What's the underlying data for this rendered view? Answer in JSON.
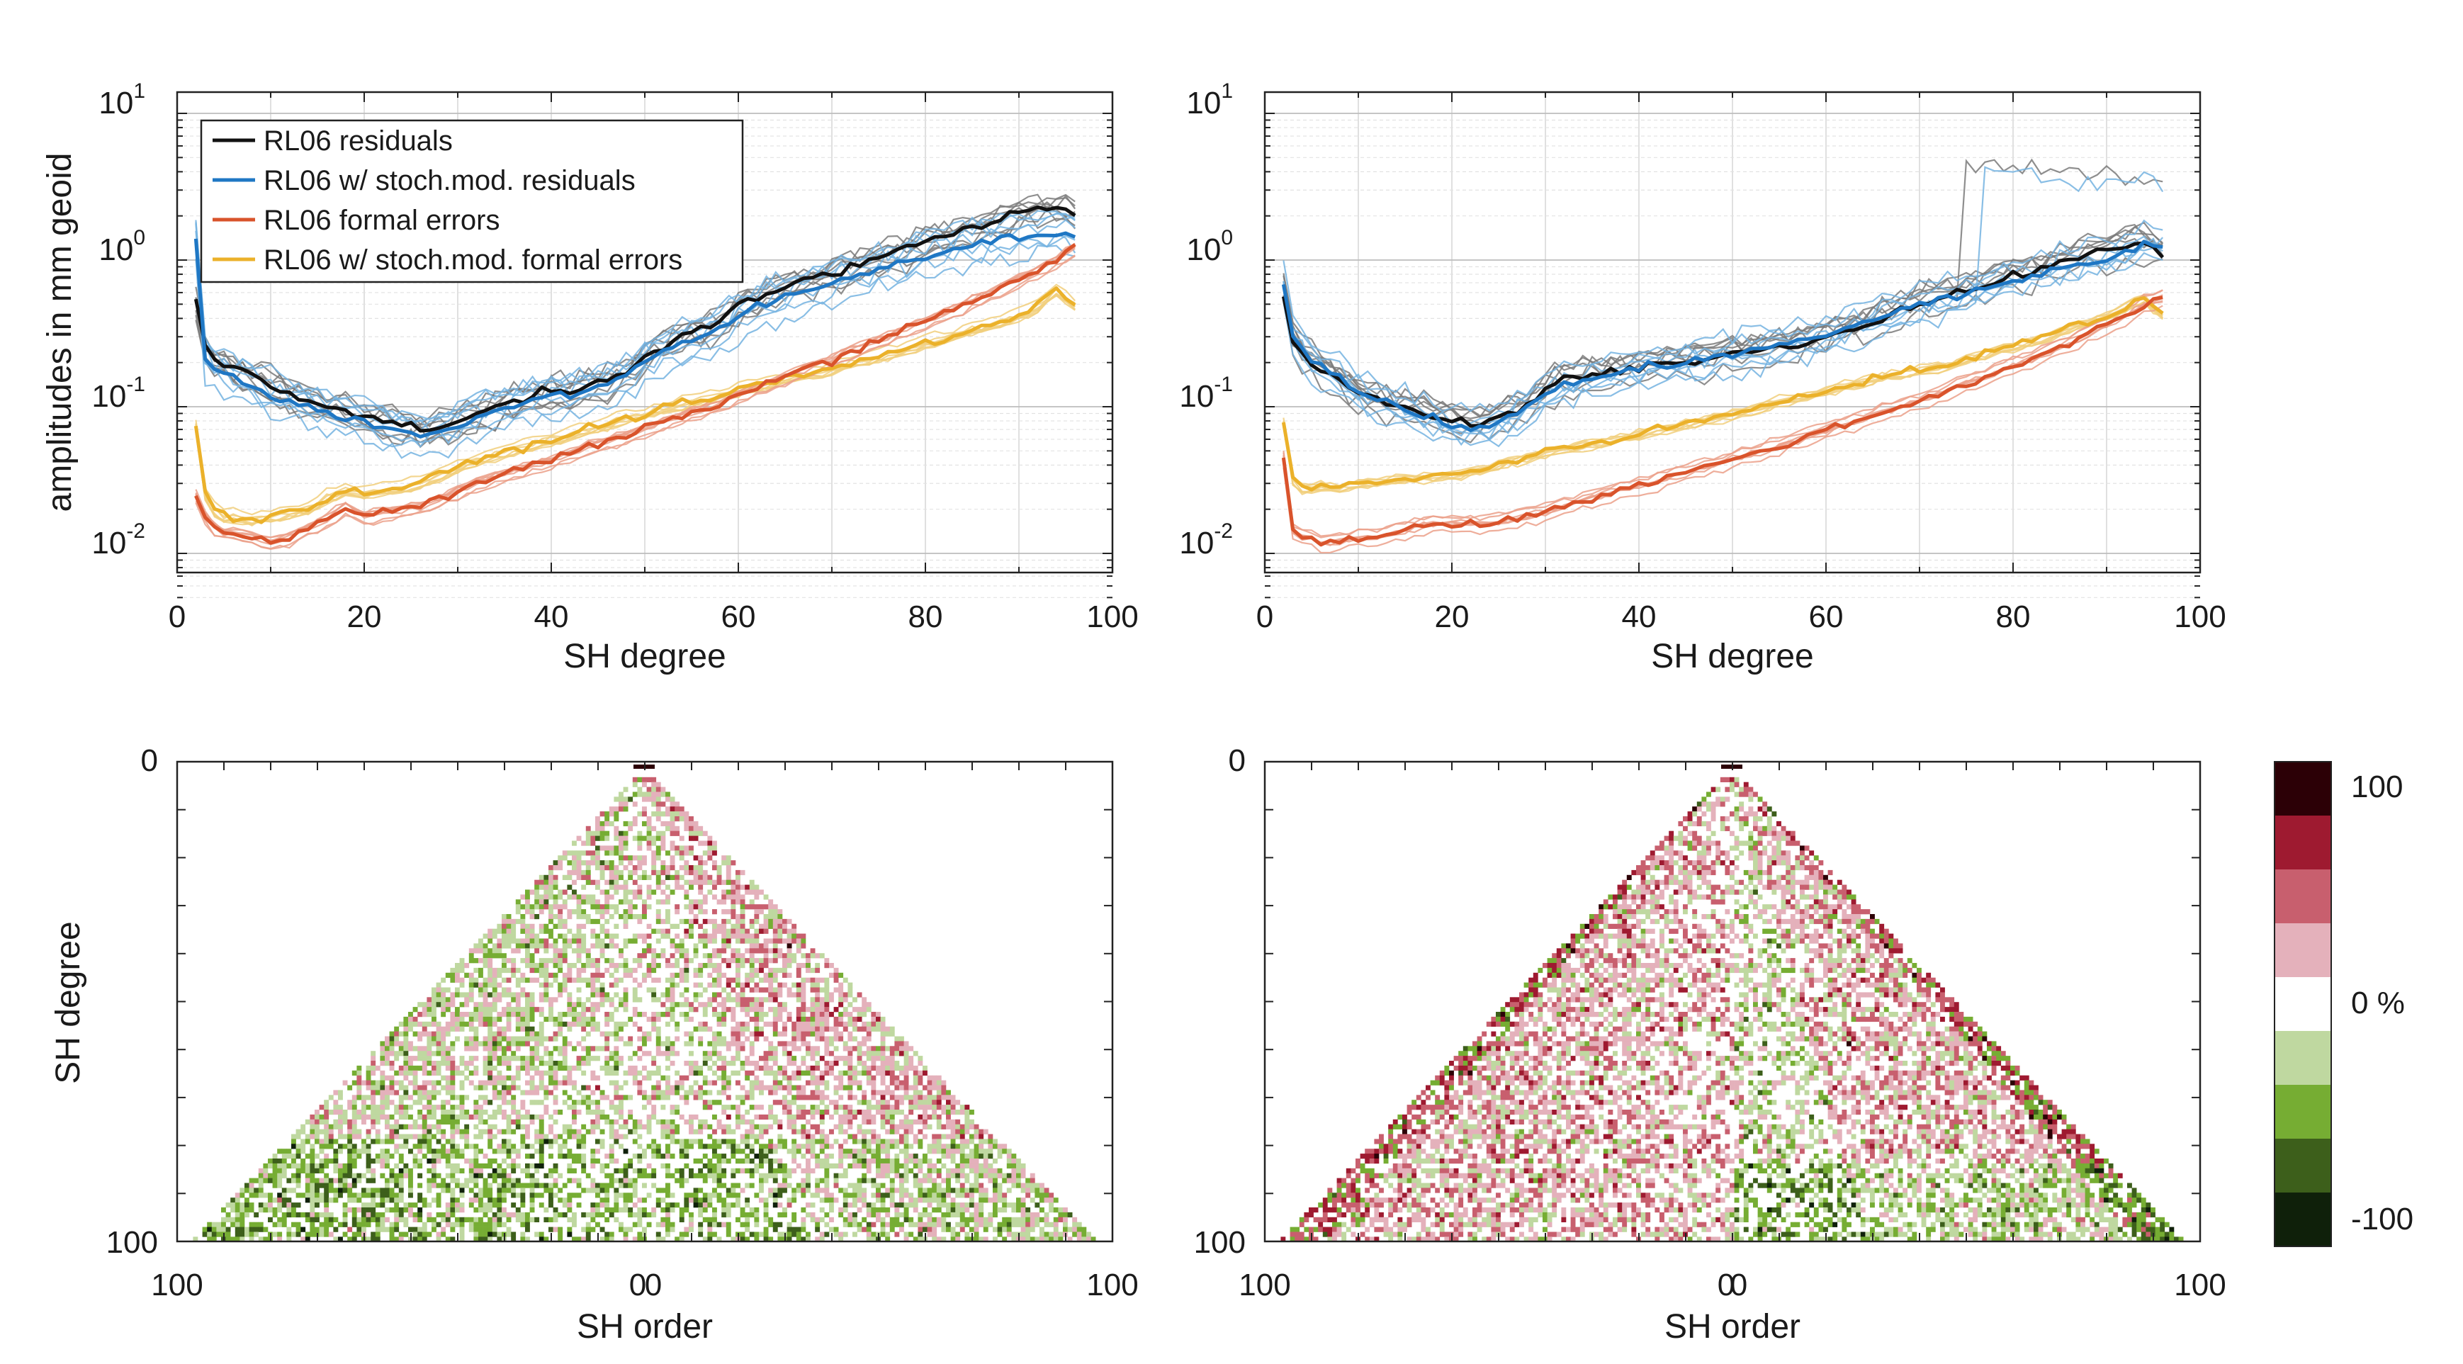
{
  "colors": {
    "residuals": "#111111",
    "stoch_residuals": "#1f77c4",
    "formal": "#d9532b",
    "stoch_formal": "#ebb12a",
    "bg": "#ffffff"
  },
  "chart_data": [
    {
      "type": "line",
      "title": "",
      "xlabel": "SH degree",
      "ylabel": "amplitudes in mm geoid",
      "xlim": [
        0,
        100
      ],
      "ylim": [
        0.005,
        10
      ],
      "yscale": "log",
      "grid": true,
      "legend_position": "top-left",
      "xticks": [
        "0",
        "20",
        "40",
        "60",
        "80",
        "100"
      ],
      "yticks": [
        {
          "base": "10",
          "exp": "1"
        },
        {
          "base": "10",
          "exp": "0"
        },
        {
          "base": "10",
          "exp": "-1"
        },
        {
          "base": "10",
          "exp": "-2"
        }
      ],
      "series": [
        {
          "name": "RL06 residuals",
          "key": "residuals",
          "x": [
            2,
            3,
            4,
            5,
            6,
            8,
            10,
            12,
            14,
            16,
            18,
            20,
            22,
            24,
            26,
            28,
            30,
            32,
            34,
            36,
            38,
            40,
            42,
            44,
            46,
            48,
            50,
            52,
            54,
            56,
            58,
            60,
            62,
            64,
            66,
            68,
            70,
            72,
            74,
            76,
            78,
            80,
            82,
            84,
            86,
            88,
            90,
            92,
            94,
            96
          ],
          "y": [
            0.55,
            0.25,
            0.2,
            0.2,
            0.18,
            0.16,
            0.14,
            0.12,
            0.11,
            0.1,
            0.095,
            0.085,
            0.08,
            0.075,
            0.072,
            0.072,
            0.08,
            0.09,
            0.1,
            0.11,
            0.12,
            0.13,
            0.13,
            0.14,
            0.15,
            0.17,
            0.22,
            0.26,
            0.3,
            0.34,
            0.38,
            0.48,
            0.55,
            0.62,
            0.68,
            0.75,
            0.82,
            0.9,
            1.0,
            1.1,
            1.2,
            1.3,
            1.45,
            1.6,
            1.75,
            1.9,
            2.1,
            2.25,
            2.3,
            2.1
          ]
        },
        {
          "name": "RL06 w/ stoch.mod. residuals",
          "key": "stoch_residuals",
          "x": [
            2,
            3,
            4,
            5,
            6,
            8,
            10,
            12,
            14,
            16,
            18,
            20,
            22,
            24,
            26,
            28,
            30,
            32,
            34,
            36,
            38,
            40,
            42,
            44,
            46,
            48,
            50,
            52,
            54,
            56,
            58,
            60,
            62,
            64,
            66,
            68,
            70,
            72,
            74,
            76,
            78,
            80,
            82,
            84,
            86,
            88,
            90,
            92,
            94,
            96
          ],
          "y": [
            1.4,
            0.22,
            0.18,
            0.17,
            0.16,
            0.14,
            0.12,
            0.11,
            0.1,
            0.09,
            0.085,
            0.078,
            0.072,
            0.068,
            0.064,
            0.066,
            0.075,
            0.085,
            0.095,
            0.1,
            0.11,
            0.12,
            0.12,
            0.13,
            0.14,
            0.16,
            0.2,
            0.24,
            0.27,
            0.3,
            0.34,
            0.42,
            0.48,
            0.53,
            0.58,
            0.63,
            0.7,
            0.76,
            0.84,
            0.92,
            1.0,
            1.08,
            1.15,
            1.22,
            1.3,
            1.38,
            1.45,
            1.5,
            1.55,
            1.45
          ]
        },
        {
          "name": "RL06 formal errors",
          "key": "formal",
          "x": [
            2,
            3,
            4,
            5,
            6,
            8,
            10,
            12,
            14,
            16,
            18,
            20,
            22,
            24,
            26,
            28,
            30,
            32,
            34,
            36,
            38,
            40,
            42,
            44,
            46,
            48,
            50,
            52,
            54,
            56,
            58,
            60,
            62,
            64,
            66,
            68,
            70,
            72,
            74,
            76,
            78,
            80,
            82,
            84,
            86,
            88,
            90,
            92,
            94,
            96
          ],
          "y": [
            0.025,
            0.018,
            0.015,
            0.014,
            0.014,
            0.013,
            0.012,
            0.013,
            0.015,
            0.017,
            0.021,
            0.018,
            0.019,
            0.02,
            0.021,
            0.023,
            0.027,
            0.03,
            0.033,
            0.036,
            0.04,
            0.043,
            0.048,
            0.053,
            0.058,
            0.064,
            0.07,
            0.078,
            0.087,
            0.096,
            0.105,
            0.12,
            0.135,
            0.15,
            0.17,
            0.19,
            0.21,
            0.24,
            0.27,
            0.3,
            0.34,
            0.38,
            0.43,
            0.49,
            0.56,
            0.64,
            0.74,
            0.86,
            1.0,
            1.2
          ]
        },
        {
          "name": "RL06 w/ stoch.mod. formal errors",
          "key": "stoch_formal",
          "x": [
            2,
            3,
            4,
            5,
            6,
            8,
            10,
            12,
            14,
            16,
            18,
            20,
            22,
            24,
            26,
            28,
            30,
            32,
            34,
            36,
            38,
            40,
            42,
            44,
            46,
            48,
            50,
            52,
            54,
            56,
            58,
            60,
            62,
            64,
            66,
            68,
            70,
            72,
            74,
            76,
            78,
            80,
            82,
            84,
            86,
            88,
            90,
            92,
            94,
            96
          ],
          "y": [
            0.075,
            0.025,
            0.02,
            0.018,
            0.018,
            0.017,
            0.018,
            0.019,
            0.02,
            0.024,
            0.027,
            0.026,
            0.027,
            0.028,
            0.03,
            0.034,
            0.039,
            0.043,
            0.047,
            0.051,
            0.055,
            0.06,
            0.065,
            0.071,
            0.077,
            0.084,
            0.09,
            0.097,
            0.105,
            0.113,
            0.12,
            0.13,
            0.14,
            0.15,
            0.16,
            0.17,
            0.18,
            0.2,
            0.21,
            0.23,
            0.25,
            0.27,
            0.29,
            0.32,
            0.35,
            0.38,
            0.42,
            0.48,
            0.62,
            0.5
          ]
        }
      ]
    },
    {
      "type": "line",
      "title": "",
      "xlabel": "SH degree",
      "ylabel": "",
      "xlim": [
        0,
        100
      ],
      "ylim": [
        0.005,
        10
      ],
      "yscale": "log",
      "grid": true,
      "xticks": [
        "0",
        "20",
        "40",
        "60",
        "80",
        "100"
      ],
      "yticks": [
        {
          "base": "10",
          "exp": "1"
        },
        {
          "base": "10",
          "exp": "0"
        },
        {
          "base": "10",
          "exp": "-1"
        },
        {
          "base": "10",
          "exp": "-2"
        }
      ],
      "series": [
        {
          "name": "RL06 residuals",
          "key": "residuals",
          "x": [
            2,
            3,
            4,
            5,
            6,
            8,
            10,
            12,
            14,
            16,
            18,
            20,
            22,
            24,
            26,
            28,
            30,
            32,
            34,
            36,
            38,
            40,
            42,
            44,
            46,
            48,
            50,
            52,
            54,
            56,
            58,
            60,
            62,
            64,
            66,
            68,
            70,
            72,
            74,
            76,
            78,
            80,
            82,
            84,
            86,
            88,
            90,
            92,
            94,
            96
          ],
          "y": [
            0.6,
            0.28,
            0.23,
            0.2,
            0.18,
            0.15,
            0.12,
            0.11,
            0.1,
            0.095,
            0.085,
            0.08,
            0.075,
            0.08,
            0.09,
            0.1,
            0.13,
            0.15,
            0.16,
            0.17,
            0.175,
            0.18,
            0.19,
            0.2,
            0.21,
            0.22,
            0.23,
            0.24,
            0.25,
            0.26,
            0.28,
            0.3,
            0.33,
            0.36,
            0.4,
            0.45,
            0.5,
            0.55,
            0.6,
            0.66,
            0.72,
            0.78,
            0.85,
            0.92,
            1.0,
            1.08,
            1.15,
            1.2,
            1.3,
            1.1
          ]
        },
        {
          "name": "RL06 w/ stoch.mod. residuals",
          "key": "stoch_residuals",
          "x": [
            2,
            3,
            4,
            5,
            6,
            8,
            10,
            12,
            14,
            16,
            18,
            20,
            22,
            24,
            26,
            28,
            30,
            32,
            34,
            36,
            38,
            40,
            42,
            44,
            46,
            48,
            50,
            52,
            54,
            56,
            58,
            60,
            62,
            64,
            66,
            68,
            70,
            72,
            74,
            76,
            78,
            80,
            82,
            84,
            86,
            88,
            90,
            92,
            94,
            96
          ],
          "y": [
            0.7,
            0.3,
            0.25,
            0.21,
            0.19,
            0.16,
            0.13,
            0.11,
            0.1,
            0.09,
            0.082,
            0.075,
            0.07,
            0.075,
            0.085,
            0.1,
            0.12,
            0.14,
            0.15,
            0.16,
            0.17,
            0.18,
            0.19,
            0.2,
            0.21,
            0.22,
            0.23,
            0.24,
            0.25,
            0.27,
            0.29,
            0.31,
            0.34,
            0.37,
            0.41,
            0.45,
            0.49,
            0.53,
            0.57,
            0.62,
            0.67,
            0.72,
            0.78,
            0.84,
            0.9,
            0.96,
            1.02,
            1.08,
            1.3,
            1.2
          ]
        },
        {
          "name": "RL06 formal errors",
          "key": "formal",
          "x": [
            2,
            3,
            4,
            5,
            6,
            8,
            10,
            12,
            14,
            16,
            18,
            20,
            22,
            24,
            26,
            28,
            30,
            32,
            34,
            36,
            38,
            40,
            42,
            44,
            46,
            48,
            50,
            52,
            54,
            56,
            58,
            60,
            62,
            64,
            66,
            68,
            70,
            72,
            74,
            76,
            78,
            80,
            82,
            84,
            86,
            88,
            90,
            92,
            94,
            96
          ],
          "y": [
            0.045,
            0.014,
            0.013,
            0.013,
            0.012,
            0.012,
            0.013,
            0.013,
            0.014,
            0.015,
            0.016,
            0.016,
            0.016,
            0.016,
            0.017,
            0.018,
            0.019,
            0.021,
            0.023,
            0.025,
            0.027,
            0.029,
            0.031,
            0.034,
            0.037,
            0.04,
            0.044,
            0.048,
            0.052,
            0.057,
            0.062,
            0.068,
            0.075,
            0.083,
            0.092,
            0.1,
            0.11,
            0.12,
            0.14,
            0.15,
            0.17,
            0.19,
            0.21,
            0.24,
            0.27,
            0.31,
            0.36,
            0.42,
            0.5,
            0.55
          ]
        },
        {
          "name": "RL06 w/ stoch.mod. formal errors",
          "key": "stoch_formal",
          "x": [
            2,
            3,
            4,
            5,
            6,
            8,
            10,
            12,
            14,
            16,
            18,
            20,
            22,
            24,
            26,
            28,
            30,
            32,
            34,
            36,
            38,
            40,
            42,
            44,
            46,
            48,
            50,
            52,
            54,
            56,
            58,
            60,
            62,
            64,
            66,
            68,
            70,
            72,
            74,
            76,
            78,
            80,
            82,
            84,
            86,
            88,
            90,
            92,
            94,
            96
          ],
          "y": [
            0.08,
            0.032,
            0.028,
            0.028,
            0.029,
            0.028,
            0.03,
            0.031,
            0.032,
            0.033,
            0.034,
            0.035,
            0.036,
            0.039,
            0.042,
            0.045,
            0.049,
            0.052,
            0.055,
            0.058,
            0.062,
            0.066,
            0.07,
            0.074,
            0.079,
            0.084,
            0.09,
            0.097,
            0.105,
            0.113,
            0.12,
            0.13,
            0.14,
            0.15,
            0.16,
            0.17,
            0.18,
            0.19,
            0.2,
            0.22,
            0.24,
            0.26,
            0.28,
            0.31,
            0.35,
            0.38,
            0.42,
            0.48,
            0.55,
            0.42
          ]
        }
      ]
    },
    {
      "type": "heatmap",
      "title": "",
      "xlabel": "SH order",
      "ylabel": "SH degree",
      "xticks": [
        "100",
        "0",
        "0",
        "100"
      ],
      "yticks": [
        "0",
        "100"
      ],
      "max_degree": 96,
      "value_range": [
        -100,
        100
      ],
      "pattern": "green-dominant"
    },
    {
      "type": "heatmap",
      "title": "",
      "xlabel": "SH order",
      "ylabel": "",
      "xticks": [
        "100",
        "0",
        "0",
        "100"
      ],
      "yticks": [
        "0",
        "100"
      ],
      "max_degree": 96,
      "value_range": [
        -100,
        100
      ],
      "pattern": "red-dominant"
    }
  ],
  "colorbar": {
    "labels": [
      "100",
      "0 %",
      "-100"
    ],
    "colors": [
      "#2c0006",
      "#9e1a30",
      "#c85f6e",
      "#e4b1bb",
      "#ffffff",
      "#bfd8a0",
      "#76ad33",
      "#3d5f1b",
      "#0f200a"
    ]
  }
}
